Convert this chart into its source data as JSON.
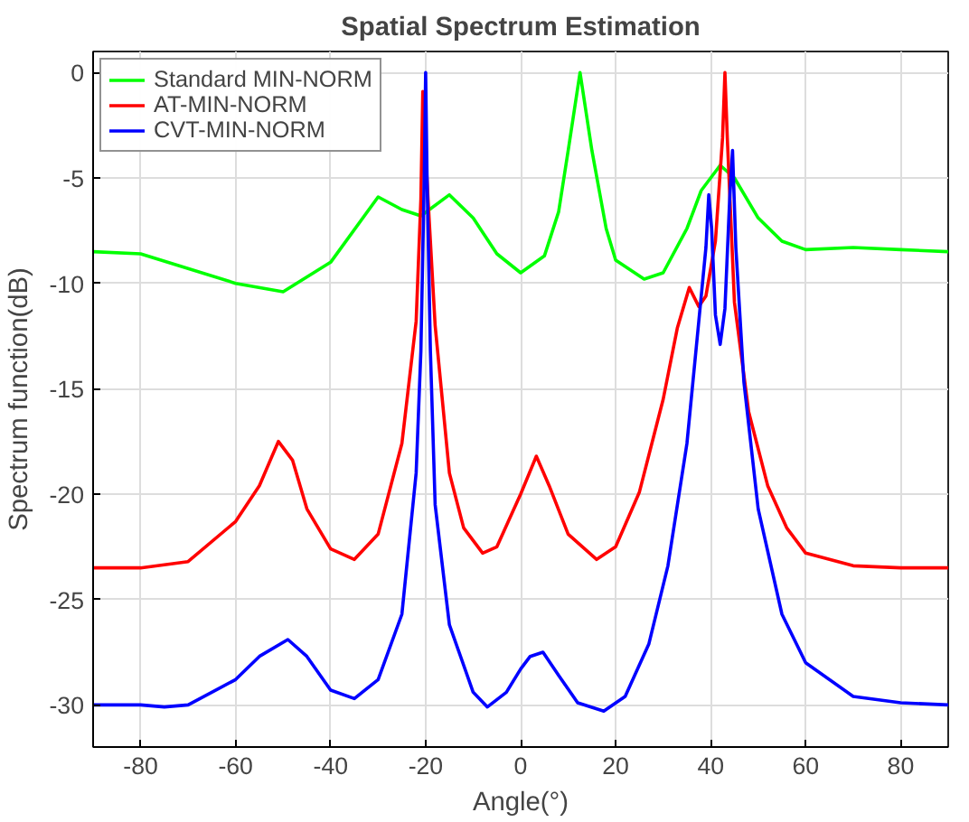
{
  "chart_data": {
    "type": "line",
    "title": "Spatial Spectrum Estimation",
    "xlabel": "Angle(°)",
    "ylabel": "Spectrum function(dB)",
    "xlim": [
      -90,
      90
    ],
    "ylim": [
      -32,
      1
    ],
    "xticks": [
      -80,
      -60,
      -40,
      -20,
      0,
      20,
      40,
      60,
      80
    ],
    "yticks": [
      -30,
      -25,
      -20,
      -15,
      -10,
      -5,
      0
    ],
    "grid": true,
    "legend": "top left",
    "marker": "none",
    "line_style": "solid",
    "series": [
      {
        "name": "Standard MIN-NORM",
        "color": "#00ff00",
        "x": [
          -90,
          -80,
          -60,
          -50,
          -40,
          -30,
          -25,
          -21,
          -15,
          -10,
          -5,
          0,
          5,
          8,
          10,
          12.5,
          15,
          18,
          20,
          26,
          30,
          35,
          38,
          42,
          45,
          50,
          55,
          60,
          70,
          80,
          90
        ],
        "values": [
          -8.5,
          -8.6,
          -10.0,
          -10.4,
          -9.0,
          -5.9,
          -6.5,
          -6.8,
          -5.8,
          -6.9,
          -8.6,
          -9.5,
          -8.7,
          -6.6,
          -3.7,
          0,
          -3.7,
          -7.4,
          -8.9,
          -9.8,
          -9.5,
          -7.4,
          -5.6,
          -4.4,
          -5.0,
          -6.9,
          -8.0,
          -8.4,
          -8.3,
          -8.4,
          -8.5
        ]
      },
      {
        "name": "AT-MIN-NORM",
        "color": "#ff0000",
        "x": [
          -90,
          -80,
          -70,
          -60,
          -55,
          -51,
          -48,
          -45,
          -40,
          -35,
          -30,
          -25,
          -22,
          -21,
          -20.6,
          -19.5,
          -18,
          -15,
          -12,
          -8,
          -5,
          -2,
          0,
          3.3,
          6,
          10,
          16,
          20,
          25,
          30,
          33,
          35.5,
          37.5,
          39,
          41,
          42.5,
          43,
          43.5,
          45,
          48,
          52,
          56,
          60,
          70,
          80,
          90
        ],
        "values": [
          -23.5,
          -23.5,
          -23.2,
          -21.3,
          -19.6,
          -17.5,
          -18.4,
          -20.7,
          -22.6,
          -23.1,
          -21.9,
          -17.6,
          -11.8,
          -6.0,
          -0.9,
          -6.0,
          -12.0,
          -19.0,
          -21.6,
          -22.8,
          -22.5,
          -21.0,
          -20.0,
          -18.2,
          -19.6,
          -21.9,
          -23.1,
          -22.5,
          -19.9,
          -15.5,
          -12.1,
          -10.2,
          -11.1,
          -10.6,
          -8.0,
          -3.1,
          0,
          -3.1,
          -10.9,
          -16.1,
          -19.6,
          -21.6,
          -22.8,
          -23.4,
          -23.5,
          -23.5
        ]
      },
      {
        "name": "CVT-MIN-NORM",
        "color": "#0000ff",
        "x": [
          -90,
          -80,
          -75,
          -70,
          -60,
          -55,
          -49,
          -45,
          -40,
          -35,
          -30,
          -25,
          -22,
          -21,
          -20.3,
          -20,
          -19.7,
          -19,
          -18,
          -15,
          -10,
          -7,
          -3,
          0,
          2,
          4.7,
          8,
          12,
          17.5,
          22,
          27,
          31,
          35,
          37.5,
          39,
          39.6,
          40.2,
          41,
          42,
          43,
          44,
          44.6,
          45.3,
          47,
          50,
          55,
          60,
          70,
          80,
          90
        ],
        "values": [
          -30.0,
          -30.0,
          -30.1,
          -30.0,
          -28.8,
          -27.7,
          -26.9,
          -27.7,
          -29.3,
          -29.7,
          -28.8,
          -25.7,
          -19.0,
          -13.2,
          -5.0,
          0,
          -5.0,
          -13.2,
          -20.5,
          -26.2,
          -29.4,
          -30.1,
          -29.4,
          -28.3,
          -27.7,
          -27.5,
          -28.6,
          -29.9,
          -30.3,
          -29.6,
          -27.1,
          -23.4,
          -17.6,
          -11.8,
          -8.3,
          -5.8,
          -7.4,
          -11.5,
          -12.9,
          -11.2,
          -6.0,
          -3.7,
          -8.3,
          -14.7,
          -20.7,
          -25.7,
          -28.0,
          -29.6,
          -29.9,
          -30.0
        ]
      }
    ]
  }
}
